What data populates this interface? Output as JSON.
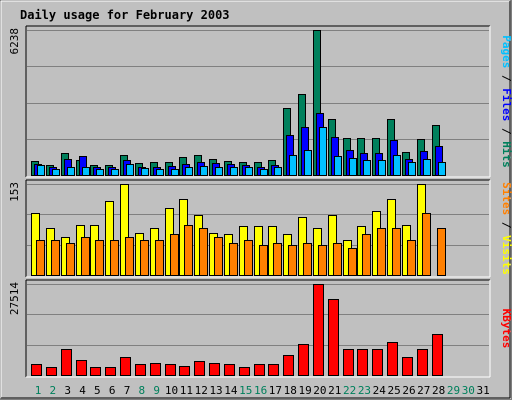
{
  "chart_data": {
    "type": "bar",
    "title": "Daily usage for February 2003",
    "x": [
      "1",
      "2",
      "3",
      "4",
      "5",
      "6",
      "7",
      "8",
      "9",
      "10",
      "11",
      "12",
      "13",
      "14",
      "15",
      "16",
      "17",
      "18",
      "19",
      "20",
      "21",
      "22",
      "23",
      "24",
      "25",
      "26",
      "27",
      "28",
      "29",
      "30",
      "31"
    ],
    "weekend_days": [
      "1",
      "2",
      "8",
      "9",
      "15",
      "16",
      "22",
      "23",
      "29",
      "30"
    ],
    "colors": {
      "background": "#C0C0C0",
      "plot_bg": "#C0C0C0",
      "grid": "#808080",
      "title": "#0000CC",
      "hits": "#00805C",
      "files": "#0000FF",
      "pages": "#00C0FF",
      "visits": "#FFFF00",
      "sites": "#FF8000",
      "kbytes": "#FF0000",
      "weekday_label": "#000000",
      "weekend_label": "#00805C"
    },
    "panels": [
      {
        "id": "hits-files-pages",
        "ymax_label": "6238",
        "ymax": 6238,
        "side_labels": [
          {
            "text": "Pages",
            "color": "#00C0FF"
          },
          {
            "text": " / ",
            "color": "#000000"
          },
          {
            "text": "Files",
            "color": "#0000FF"
          },
          {
            "text": " / ",
            "color": "#000000"
          },
          {
            "text": "Hits",
            "color": "#00805C"
          }
        ],
        "series": [
          {
            "name": "Hits",
            "color": "#00805C",
            "values": [
              620,
              410,
              950,
              650,
              440,
              440,
              860,
              520,
              540,
              540,
              770,
              860,
              690,
              590,
              540,
              540,
              660,
              2870,
              3490,
              6238,
              2400,
              1580,
              1580,
              1580,
              2410,
              1000,
              1540,
              2150,
              0,
              0,
              0
            ]
          },
          {
            "name": "Files",
            "color": "#0000FF",
            "values": [
              460,
              330,
              700,
              830,
              330,
              330,
              660,
              360,
              330,
              380,
              480,
              570,
              500,
              480,
              420,
              330,
              420,
              1740,
              2050,
              2650,
              1620,
              1080,
              950,
              950,
              1500,
              700,
              1050,
              1240,
              0,
              0,
              0
            ]
          },
          {
            "name": "Pages",
            "color": "#00C0FF",
            "values": [
              410,
              250,
              330,
              330,
              250,
              250,
              490,
              280,
              250,
              250,
              330,
              400,
              330,
              330,
              330,
              250,
              330,
              870,
              1070,
              2080,
              800,
              740,
              660,
              660,
              870,
              560,
              690,
              580,
              0,
              0,
              0
            ]
          }
        ]
      },
      {
        "id": "visits-sites",
        "ymax_label": "153",
        "ymax": 153,
        "side_labels": [
          {
            "text": "Sites",
            "color": "#FF8000"
          },
          {
            "text": " / ",
            "color": "#000000"
          },
          {
            "text": "Visits",
            "color": "#FFFF00"
          }
        ],
        "series": [
          {
            "name": "Visits",
            "color": "#FFFF00",
            "values": [
              105,
              79,
              64,
              84,
              84,
              124,
              153,
              71,
              79,
              113,
              127,
              101,
              71,
              69,
              82,
              82,
              82,
              69,
              98,
              79,
              101,
              59,
              82,
              108,
              128,
              84,
              153,
              0,
              0,
              0,
              0
            ]
          },
          {
            "name": "Sites",
            "color": "#FF8000",
            "values": [
              59,
              59,
              54,
              64,
              59,
              59,
              64,
              59,
              59,
              69,
              84,
              79,
              64,
              54,
              59,
              50,
              54,
              50,
              54,
              50,
              54,
              45,
              69,
              79,
              79,
              59,
              104,
              79,
              0,
              0,
              0
            ]
          }
        ]
      },
      {
        "id": "kbytes",
        "ymax_label": "27514",
        "ymax": 27514,
        "side_labels": [
          {
            "text": "KBytes",
            "color": "#FF0000"
          }
        ],
        "series": [
          {
            "name": "KBytes",
            "color": "#FF0000",
            "values": [
              3400,
              2500,
              7800,
              4600,
              2400,
              2400,
              5300,
              3400,
              3700,
              3400,
              2700,
              4100,
              3700,
              3400,
              2400,
              3200,
              3400,
              6000,
              9300,
              27514,
              23000,
              7800,
              7800,
              7800,
              10000,
              5300,
              7800,
              12300,
              0,
              0,
              0
            ]
          }
        ]
      }
    ]
  }
}
